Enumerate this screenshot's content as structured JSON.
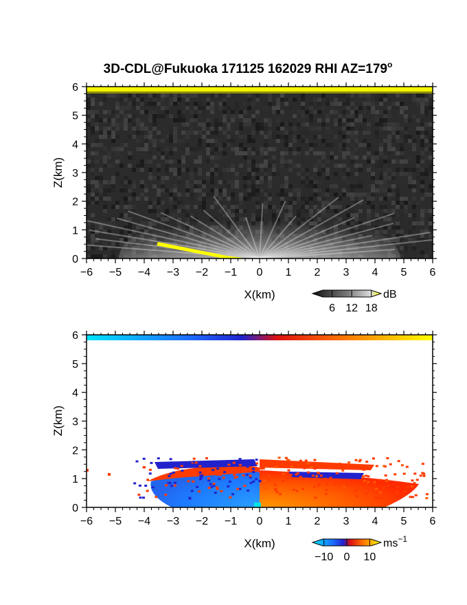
{
  "figure": {
    "title": "3D-CDL@Fukuoka 171125 162029 RHI AZ=179",
    "title_degree": "o"
  },
  "chart_data": [
    {
      "type": "heatmap",
      "name": "reflectivity",
      "xlabel": "X(km)",
      "ylabel": "Z(km)",
      "xlim": [
        -6,
        6
      ],
      "ylim": [
        0,
        6
      ],
      "xticks": [
        "−6",
        "−5",
        "−4",
        "−3",
        "−2",
        "−1",
        "0",
        "1",
        "2",
        "3",
        "4",
        "5",
        "6"
      ],
      "yticks": [
        "0",
        "1",
        "2",
        "3",
        "4",
        "5",
        "6"
      ],
      "colorbar": {
        "unit": "dB",
        "ticks": [
          "6",
          "12",
          "18"
        ],
        "range": [
          0,
          21
        ]
      },
      "colors": {
        "background": "#2b2b2b",
        "bright": "#e6e6e6",
        "highlight": "#ffff00"
      },
      "features": {
        "noise_top_km": 5.75,
        "bright_layer_top_km": 1.6,
        "bright_layer_center_km": 0.0,
        "bright_layer_halfwidth_km": 4.8
      }
    },
    {
      "type": "heatmap",
      "name": "doppler-velocity",
      "xlabel": "X(km)",
      "ylabel": "Z(km)",
      "xlim": [
        -6,
        6
      ],
      "ylim": [
        0,
        6
      ],
      "xticks": [
        "−6",
        "−5",
        "−4",
        "−3",
        "−2",
        "−1",
        "0",
        "1",
        "2",
        "3",
        "4",
        "5",
        "6"
      ],
      "yticks": [
        "0",
        "1",
        "2",
        "3",
        "4",
        "5",
        "6"
      ],
      "colorbar": {
        "unit": "ms",
        "unit_exponent": "−1",
        "ticks": [
          "−10",
          "0",
          "10"
        ],
        "range": [
          -15,
          15
        ]
      },
      "colors": {
        "negative": "#1e8bff",
        "positive": "#ff3b00",
        "far_positive": "#ffe600"
      },
      "features": {
        "layer_top_km": 1.6,
        "layer_x_range_km": [
          -4.0,
          5.8
        ]
      }
    }
  ]
}
